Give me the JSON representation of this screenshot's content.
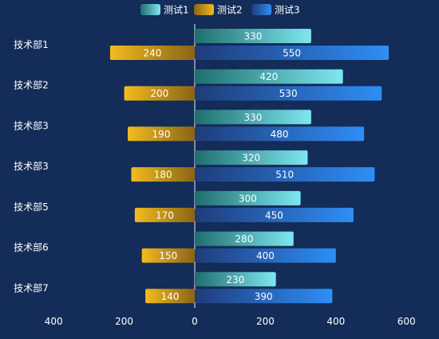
{
  "chart_data": {
    "type": "bar",
    "orientation": "horizontal",
    "stacked": false,
    "categories": [
      "技术部1",
      "技术部2",
      "技术部3",
      "技术部3",
      "技术部5",
      "技术部6",
      "技术部7"
    ],
    "series": [
      {
        "name": "测试1",
        "direction": "positive",
        "values": [
          330,
          420,
          330,
          320,
          300,
          280,
          230
        ],
        "colors": [
          "#1f6e6e",
          "#7ee7f0"
        ]
      },
      {
        "name": "测试2",
        "direction": "negative",
        "values": [
          240,
          200,
          190,
          180,
          170,
          150,
          140
        ],
        "colors": [
          "#8a6416",
          "#f2bc1e"
        ]
      },
      {
        "name": "测试3",
        "direction": "positive",
        "values": [
          550,
          530,
          480,
          510,
          450,
          400,
          390
        ],
        "colors": [
          "#1f3c79",
          "#2e8ef7"
        ]
      }
    ],
    "xlim": [
      -400,
      600
    ],
    "x_ticks": [
      -400,
      -200,
      0,
      200,
      400,
      600
    ],
    "x_tick_labels": [
      "400",
      "200",
      "0",
      "200",
      "400",
      "600"
    ],
    "legend_position": "top-center",
    "grid": false,
    "title": "",
    "xlabel": "",
    "ylabel": ""
  }
}
